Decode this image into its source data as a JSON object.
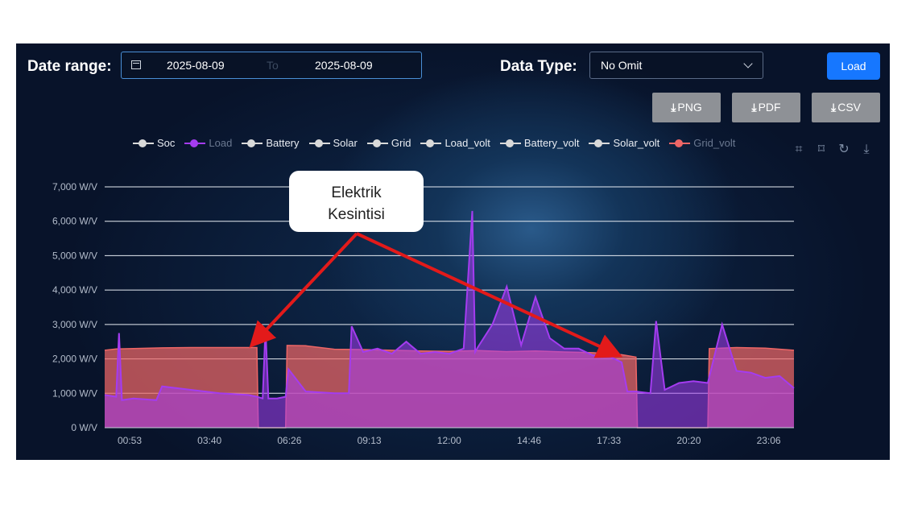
{
  "toolbar": {
    "date_range_label": "Date range:",
    "date_from": "2025-08-09",
    "date_separator": "To",
    "date_to": "2025-08-09",
    "data_type_label": "Data Type:",
    "data_type_value": "No Omit",
    "load_button": "Load",
    "export_png": "PNG",
    "export_pdf": "PDF",
    "export_csv": "CSV"
  },
  "legend": [
    {
      "name": "Soc",
      "color": "#d9d9d9",
      "active": true
    },
    {
      "name": "Load",
      "color": "#a43cf0",
      "active": false
    },
    {
      "name": "Battery",
      "color": "#d9d9d9",
      "active": true
    },
    {
      "name": "Solar",
      "color": "#d9d9d9",
      "active": true
    },
    {
      "name": "Grid",
      "color": "#d9d9d9",
      "active": true
    },
    {
      "name": "Load_volt",
      "color": "#d9d9d9",
      "active": true
    },
    {
      "name": "Battery_volt",
      "color": "#d9d9d9",
      "active": true
    },
    {
      "name": "Solar_volt",
      "color": "#d9d9d9",
      "active": true
    },
    {
      "name": "Grid_volt",
      "color": "#ee6666",
      "active": false
    }
  ],
  "annotation": {
    "line1": "Elektrik",
    "line2": "Kesintisi"
  },
  "chart_data": {
    "type": "area",
    "y_ticks": [
      "0 W/V",
      "1,000 W/V",
      "2,000 W/V",
      "3,000 W/V",
      "4,000 W/V",
      "5,000 W/V",
      "6,000 W/V",
      "7,000 W/V"
    ],
    "ylim": [
      0,
      7000
    ],
    "x_ticks": [
      "00:53",
      "03:40",
      "06:26",
      "09:13",
      "12:00",
      "14:46",
      "17:33",
      "20:20",
      "23:06"
    ],
    "grid": true,
    "legend_position": "top",
    "series": [
      {
        "name": "Grid_volt",
        "color": "#ee6666",
        "hours": [
          0,
          0.4,
          1,
          2,
          3,
          4,
          5,
          5.3,
          5.35,
          6,
          6.3,
          6.35,
          7,
          8,
          9,
          10,
          11,
          12,
          13,
          14,
          15,
          16,
          17,
          18,
          18.5,
          18.55,
          19,
          20,
          21,
          21.05,
          22,
          23,
          24
        ],
        "values": [
          2250,
          2290,
          2300,
          2320,
          2330,
          2330,
          2330,
          2330,
          0,
          0,
          0,
          2390,
          2380,
          2280,
          2270,
          2250,
          2230,
          2220,
          2240,
          2210,
          2230,
          2200,
          2180,
          2120,
          2050,
          0,
          0,
          0,
          0,
          2300,
          2330,
          2310,
          2250
        ]
      },
      {
        "name": "Load",
        "color": "#a43cf0",
        "hours": [
          0,
          0.4,
          0.5,
          0.6,
          1,
          1.8,
          2,
          3,
          4,
          5,
          5.3,
          5.5,
          5.6,
          5.7,
          6,
          6.3,
          6.4,
          7,
          8,
          8.5,
          8.6,
          9,
          9.5,
          10,
          10.5,
          11,
          11.5,
          12,
          12.5,
          12.8,
          12.9,
          13,
          13.5,
          14,
          14.5,
          15,
          15.5,
          16,
          16.5,
          17,
          17.5,
          18,
          18.2,
          18.5,
          19,
          19.2,
          19.5,
          20,
          20.5,
          21,
          21.5,
          22,
          22.5,
          23,
          23.5,
          24
        ],
        "values": [
          950,
          900,
          2750,
          800,
          850,
          800,
          1200,
          1100,
          1000,
          950,
          900,
          850,
          2900,
          850,
          850,
          900,
          1700,
          1050,
          1000,
          1000,
          2950,
          2200,
          2300,
          2150,
          2500,
          2150,
          2200,
          2150,
          2300,
          6300,
          2200,
          2350,
          3000,
          4100,
          2400,
          3800,
          2600,
          2300,
          2300,
          2100,
          2100,
          1900,
          1050,
          1050,
          1000,
          3100,
          1100,
          1300,
          1350,
          1300,
          3000,
          1650,
          1600,
          1450,
          1500,
          1150
        ]
      }
    ]
  }
}
